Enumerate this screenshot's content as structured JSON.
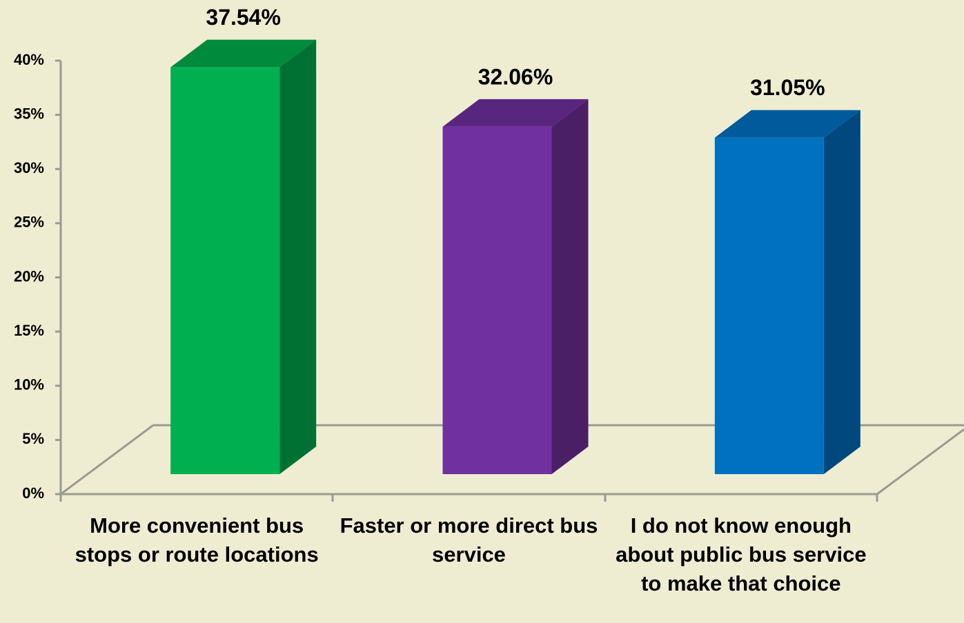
{
  "chart_data": {
    "type": "bar3d",
    "categories": [
      "More convenient bus stops or route locations",
      "Faster or more direct bus service",
      "I do not know enough about public bus service to make that choice"
    ],
    "values": [
      37.54,
      32.06,
      31.05
    ],
    "value_labels": [
      "37.54%",
      "32.06%",
      "31.05%"
    ],
    "colors": [
      "#00b050",
      "#7030a0",
      "#0070c0"
    ],
    "side_colors": [
      "#007033",
      "#4a1f66",
      "#00487e"
    ],
    "top_colors": [
      "#008a3c",
      "#58267f",
      "#005a9c"
    ],
    "ylim": [
      0,
      40
    ],
    "yticks": [
      {
        "value": 0,
        "label": "0%"
      },
      {
        "value": 5,
        "label": "5%"
      },
      {
        "value": 10,
        "label": "10%"
      },
      {
        "value": 15,
        "label": "15%"
      },
      {
        "value": 20,
        "label": "20%"
      },
      {
        "value": 25,
        "label": "25%"
      },
      {
        "value": 30,
        "label": "30%"
      },
      {
        "value": 35,
        "label": "35%"
      },
      {
        "value": 40,
        "label": "40%"
      }
    ],
    "grid": false
  }
}
